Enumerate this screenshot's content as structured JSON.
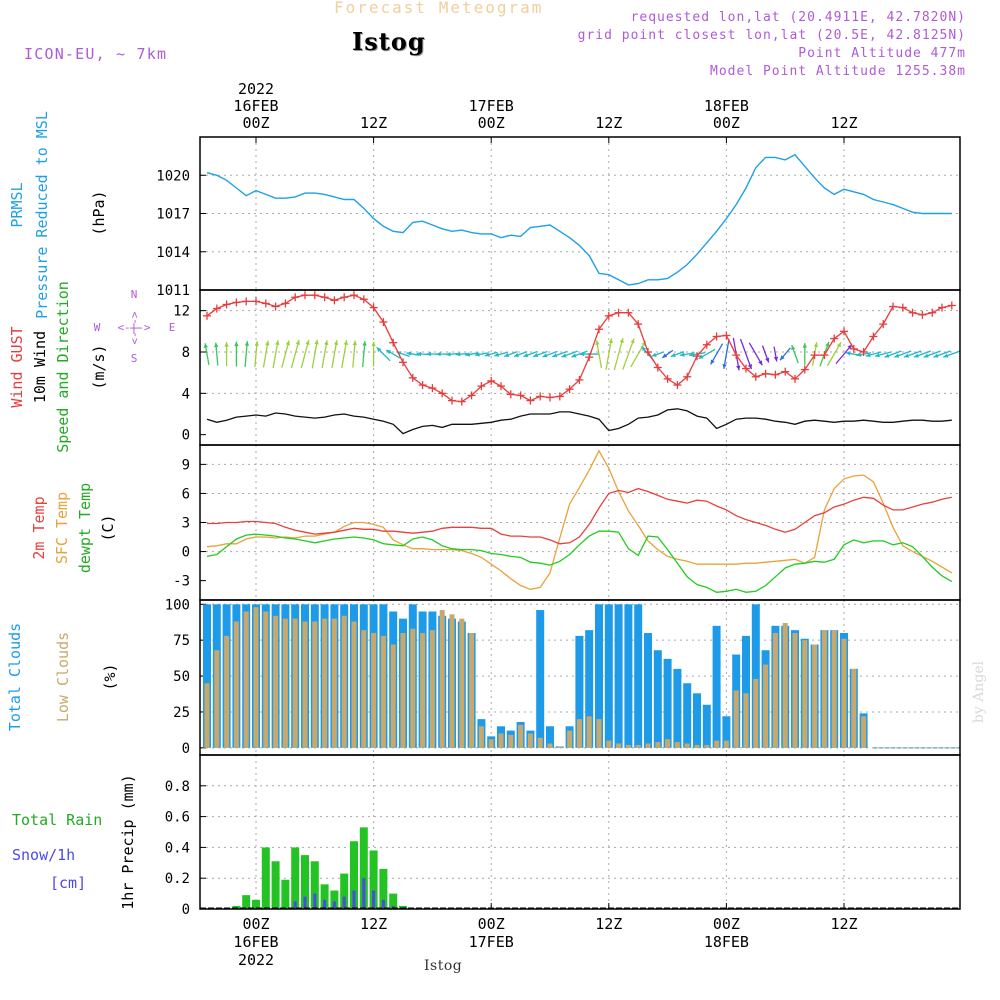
{
  "header": {
    "title": "Forecast Meteogram",
    "station": "Istog",
    "model": "ICON-EU, ~ 7km",
    "requested": "requested lon,lat (20.4911E, 42.7820N)",
    "grid": "grid point closest lon,lat (20.5E, 42.8125N)",
    "point_alt": "Point Altitude 477m",
    "model_alt": "Model Point Altitude 1255.38m",
    "footer_station": "Istog",
    "watermark": "by Angel"
  },
  "colors": {
    "pressure": "#1ea0e6",
    "gust": "#e83c3c",
    "wind": "#111111",
    "t2m": "#e8403c",
    "tsfc": "#e8a23a",
    "dewpt": "#22cc22",
    "total_clouds": "#1e9be8",
    "low_clouds": "#c9a86b",
    "rain": "#22c322",
    "snow": "#4a4ae6",
    "purple": "#b05ad8"
  },
  "time_axis": {
    "top_labels": [
      {
        "hour": 0,
        "lines": [
          "2022",
          "16FEB",
          "00Z"
        ]
      },
      {
        "hour": 12,
        "lines": [
          "12Z"
        ]
      },
      {
        "hour": 24,
        "lines": [
          "17FEB",
          "00Z"
        ]
      },
      {
        "hour": 36,
        "lines": [
          "12Z"
        ]
      },
      {
        "hour": 48,
        "lines": [
          "18FEB",
          "00Z"
        ]
      },
      {
        "hour": 60,
        "lines": [
          "12Z"
        ]
      }
    ],
    "bottom_labels": [
      {
        "hour": 0,
        "lines": [
          "00Z",
          "16FEB",
          "2022"
        ]
      },
      {
        "hour": 12,
        "lines": [
          "12Z"
        ]
      },
      {
        "hour": 24,
        "lines": [
          "00Z",
          "17FEB"
        ]
      },
      {
        "hour": 36,
        "lines": [
          "12Z"
        ]
      },
      {
        "hour": 48,
        "lines": [
          "00Z",
          "18FEB"
        ]
      },
      {
        "hour": 60,
        "lines": [
          "12Z"
        ]
      }
    ]
  },
  "panel_labels": {
    "pressure": [
      "PRMSL",
      "Pressure Reduced to MSL",
      "(hPa)"
    ],
    "wind": [
      "Wind GUST",
      "10m Wind",
      "Speed and Direction",
      "(m/s)"
    ],
    "wind_compass": {
      "w": "W",
      "e": "E",
      "n": "N",
      "s": "S",
      "arrows": "<-|->"
    },
    "temp": [
      "2m Temp",
      "SFC Temp",
      "dewpt Temp",
      "(C)"
    ],
    "clouds": [
      "Total Clouds",
      "Low Clouds",
      "(%)"
    ],
    "precip": [
      "Total  Rain",
      "Snow/1h",
      "[cm]",
      "1hr Precip (mm)"
    ]
  },
  "chart_data": [
    {
      "type": "line",
      "title": "PRMSL Pressure Reduced to MSL",
      "ylabel": "(hPa)",
      "ylim": [
        1011,
        1023
      ],
      "yticks": [
        1011,
        1014,
        1017,
        1020
      ],
      "x_hours": [
        -5,
        -4,
        -3,
        -2,
        -1,
        0,
        1,
        2,
        3,
        4,
        5,
        6,
        7,
        8,
        9,
        10,
        11,
        12,
        13,
        14,
        15,
        16,
        17,
        18,
        19,
        20,
        21,
        22,
        23,
        24,
        25,
        26,
        27,
        28,
        29,
        30,
        31,
        32,
        33,
        34,
        35,
        36,
        37,
        38,
        39,
        40,
        41,
        42,
        43,
        44,
        45,
        46,
        47,
        48,
        49,
        50,
        51,
        52,
        53,
        54,
        55,
        56,
        57,
        58,
        59,
        60,
        61,
        62,
        63,
        64,
        65,
        66,
        67,
        68,
        69,
        70,
        71
      ],
      "pressure": [
        1020.2,
        1020.0,
        1019.6,
        1019.0,
        1018.4,
        1018.8,
        1018.5,
        1018.2,
        1018.2,
        1018.3,
        1018.6,
        1018.6,
        1018.5,
        1018.3,
        1018.1,
        1018.1,
        1017.4,
        1016.6,
        1016.0,
        1015.6,
        1015.5,
        1016.3,
        1016.4,
        1016.1,
        1015.8,
        1015.6,
        1015.7,
        1015.5,
        1015.4,
        1015.4,
        1015.1,
        1015.3,
        1015.2,
        1015.9,
        1016.0,
        1016.1,
        1015.6,
        1015.1,
        1014.5,
        1013.7,
        1012.3,
        1012.2,
        1011.8,
        1011.4,
        1011.5,
        1011.8,
        1011.8,
        1011.9,
        1012.4,
        1013.0,
        1013.8,
        1014.7,
        1015.6,
        1016.6,
        1017.7,
        1019.0,
        1020.6,
        1021.4,
        1021.4,
        1021.2,
        1021.6,
        1020.7,
        1019.8,
        1019.0,
        1018.5,
        1018.9,
        1018.7,
        1018.5,
        1018.1,
        1017.9,
        1017.7,
        1017.4,
        1017.1,
        1017.0,
        1017.0,
        1017.0,
        1017.0
      ]
    },
    {
      "type": "line",
      "title": "Wind GUST / 10m Wind Speed and Direction",
      "ylabel": "(m/s)",
      "ylim": [
        -1,
        14
      ],
      "yticks": [
        0,
        4,
        8,
        12
      ],
      "x_hours": [
        -5,
        -4,
        -3,
        -2,
        -1,
        0,
        1,
        2,
        3,
        4,
        5,
        6,
        7,
        8,
        9,
        10,
        11,
        12,
        13,
        14,
        15,
        16,
        17,
        18,
        19,
        20,
        21,
        22,
        23,
        24,
        25,
        26,
        27,
        28,
        29,
        30,
        31,
        32,
        33,
        34,
        35,
        36,
        37,
        38,
        39,
        40,
        41,
        42,
        43,
        44,
        45,
        46,
        47,
        48,
        49,
        50,
        51,
        52,
        53,
        54,
        55,
        56,
        57,
        58,
        59,
        60,
        61,
        62,
        63,
        64,
        65,
        66,
        67,
        68,
        69,
        70,
        71
      ],
      "gust": [
        11.5,
        12.2,
        12.6,
        12.8,
        12.9,
        12.9,
        12.7,
        12.4,
        12.7,
        13.3,
        13.5,
        13.5,
        13.3,
        13.0,
        13.3,
        13.5,
        13.1,
        12.3,
        10.9,
        8.9,
        7.0,
        5.5,
        4.8,
        4.5,
        4.0,
        3.3,
        3.2,
        3.8,
        4.7,
        5.2,
        4.7,
        3.9,
        3.8,
        3.3,
        3.7,
        3.6,
        3.7,
        4.4,
        5.3,
        7.5,
        10.2,
        11.5,
        11.8,
        11.8,
        10.7,
        8.0,
        6.5,
        5.4,
        4.8,
        5.6,
        7.6,
        8.7,
        9.5,
        9.6,
        7.7,
        6.4,
        5.6,
        5.9,
        5.8,
        6.1,
        5.4,
        6.3,
        7.7,
        7.7,
        9.3,
        10.0,
        8.3,
        8.0,
        9.5,
        10.7,
        12.4,
        12.3,
        11.8,
        11.6,
        11.8,
        12.3,
        12.5
      ],
      "wind": [
        1.5,
        1.2,
        1.4,
        1.7,
        1.8,
        1.9,
        1.8,
        2.1,
        2.0,
        1.8,
        1.7,
        1.6,
        1.7,
        1.9,
        2.0,
        1.8,
        1.7,
        1.5,
        1.3,
        1.0,
        0.1,
        0.5,
        0.8,
        0.9,
        0.7,
        1.0,
        1.0,
        1.0,
        1.1,
        1.2,
        1.4,
        1.5,
        1.8,
        2.0,
        2.0,
        2.0,
        2.2,
        2.2,
        2.0,
        1.8,
        1.5,
        0.4,
        0.6,
        1.0,
        1.6,
        1.7,
        1.9,
        2.4,
        2.5,
        2.3,
        1.8,
        1.6,
        0.6,
        1.0,
        1.5,
        1.6,
        1.6,
        1.5,
        1.3,
        1.2,
        1.0,
        1.3,
        1.4,
        1.3,
        1.2,
        1.3,
        1.3,
        1.4,
        1.3,
        1.2,
        1.2,
        1.3,
        1.4,
        1.4,
        1.3,
        1.3,
        1.4
      ],
      "arrow_dir_deg": [
        170,
        175,
        180,
        180,
        185,
        185,
        190,
        190,
        195,
        195,
        195,
        190,
        190,
        190,
        190,
        185,
        185,
        180,
        135,
        120,
        110,
        100,
        95,
        90,
        90,
        85,
        85,
        80,
        80,
        75,
        75,
        70,
        70,
        70,
        70,
        70,
        70,
        70,
        70,
        90,
        170,
        190,
        195,
        200,
        210,
        140,
        70,
        55,
        70,
        80,
        80,
        60,
        30,
        10,
        350,
        340,
        330,
        340,
        350,
        40,
        160,
        180,
        190,
        200,
        210,
        220,
        100,
        80,
        75,
        75,
        70,
        70,
        70,
        70,
        70,
        70,
        70
      ],
      "arrow_len": [
        2.2,
        2.3,
        2.4,
        2.5,
        2.6,
        2.6,
        2.7,
        2.8,
        2.8,
        2.9,
        2.9,
        2.9,
        2.8,
        2.8,
        2.8,
        2.7,
        2.6,
        2.5,
        1.9,
        1.6,
        1.4,
        1.3,
        1.2,
        1.2,
        1.2,
        1.2,
        1.2,
        1.3,
        1.3,
        1.3,
        1.4,
        1.4,
        1.4,
        1.5,
        1.5,
        1.6,
        1.6,
        1.7,
        1.7,
        1.9,
        2.8,
        3.2,
        3.3,
        3.3,
        3.0,
        2.0,
        1.3,
        1.3,
        1.4,
        1.5,
        1.6,
        1.9,
        2.4,
        3.0,
        3.3,
        3.2,
        2.6,
        1.8,
        1.5,
        1.6,
        1.9,
        2.2,
        2.4,
        2.6,
        2.7,
        2.5,
        1.6,
        1.5,
        1.6,
        1.7,
        1.8,
        1.8,
        1.8,
        1.8,
        1.8,
        1.8,
        1.8
      ]
    },
    {
      "type": "line",
      "title": "2m Temp / SFC Temp / dewpt Temp",
      "ylabel": "(C)",
      "ylim": [
        -5,
        11
      ],
      "yticks": [
        -3,
        0,
        3,
        6,
        9
      ],
      "x_hours": [
        -5,
        -4,
        -3,
        -2,
        -1,
        0,
        1,
        2,
        3,
        4,
        5,
        6,
        7,
        8,
        9,
        10,
        11,
        12,
        13,
        14,
        15,
        16,
        17,
        18,
        19,
        20,
        21,
        22,
        23,
        24,
        25,
        26,
        27,
        28,
        29,
        30,
        31,
        32,
        33,
        34,
        35,
        36,
        37,
        38,
        39,
        40,
        41,
        42,
        43,
        44,
        45,
        46,
        47,
        48,
        49,
        50,
        51,
        52,
        53,
        54,
        55,
        56,
        57,
        58,
        59,
        60,
        61,
        62,
        63,
        64,
        65,
        66,
        67,
        68,
        69,
        70,
        71
      ],
      "t2m": [
        2.9,
        2.9,
        3.0,
        3.0,
        3.1,
        3.1,
        3.0,
        2.9,
        2.5,
        2.2,
        2.0,
        1.8,
        1.9,
        2.0,
        2.2,
        2.4,
        2.3,
        2.3,
        2.1,
        2.1,
        2.0,
        1.9,
        2.0,
        2.1,
        2.4,
        2.5,
        2.5,
        2.5,
        2.4,
        2.4,
        1.8,
        1.6,
        1.6,
        1.5,
        1.5,
        1.2,
        0.8,
        0.9,
        1.5,
        2.8,
        4.5,
        6.0,
        6.3,
        6.1,
        6.5,
        6.2,
        5.8,
        5.4,
        5.2,
        5.0,
        5.3,
        5.2,
        4.7,
        4.3,
        3.7,
        3.3,
        3.0,
        2.7,
        2.3,
        2.0,
        2.3,
        3.0,
        3.7,
        4.0,
        4.6,
        4.9,
        5.3,
        5.6,
        5.5,
        4.8,
        4.3,
        4.3,
        4.6,
        4.9,
        5.1,
        5.4,
        5.6
      ],
      "tsfc": [
        0.5,
        0.6,
        0.8,
        0.8,
        1.3,
        1.5,
        1.5,
        1.4,
        1.5,
        1.4,
        1.6,
        1.6,
        1.8,
        2.0,
        2.6,
        3.0,
        3.0,
        2.8,
        2.5,
        1.2,
        0.7,
        0.3,
        0.3,
        0.2,
        0.2,
        0.2,
        0.1,
        -0.2,
        -0.6,
        -1.3,
        -2.0,
        -2.8,
        -3.5,
        -3.9,
        -3.7,
        -2.2,
        1.4,
        4.9,
        6.6,
        8.4,
        10.4,
        8.6,
        6.2,
        4.2,
        2.7,
        1.1,
        0.2,
        -0.5,
        -0.8,
        -1.0,
        -1.3,
        -1.3,
        -1.3,
        -1.3,
        -1.3,
        -1.2,
        -1.2,
        -1.1,
        -1.0,
        -0.9,
        -0.8,
        -1.2,
        -0.6,
        4.3,
        6.5,
        7.5,
        7.8,
        7.9,
        7.2,
        5.0,
        2.5,
        0.6,
        0.0,
        -0.5,
        -1.0,
        -1.6,
        -2.2
      ],
      "dewpt": [
        -0.5,
        -0.3,
        0.5,
        1.3,
        1.7,
        1.8,
        1.7,
        1.6,
        1.4,
        1.3,
        1.1,
        0.9,
        1.1,
        1.3,
        1.4,
        1.5,
        1.4,
        1.2,
        0.8,
        0.7,
        0.6,
        1.3,
        1.5,
        1.2,
        0.6,
        0.3,
        0.2,
        0.2,
        0.1,
        -0.2,
        -0.3,
        -0.5,
        -0.6,
        -1.1,
        -1.2,
        -1.4,
        -1.0,
        -0.3,
        0.7,
        1.6,
        2.1,
        2.1,
        2.0,
        0.3,
        -0.4,
        1.6,
        1.5,
        0.2,
        -1.2,
        -2.6,
        -3.4,
        -3.7,
        -4.2,
        -4.1,
        -3.9,
        -4.2,
        -4.1,
        -3.5,
        -2.6,
        -1.7,
        -1.3,
        -1.2,
        -1.0,
        -1.1,
        -0.8,
        0.7,
        1.2,
        0.9,
        1.1,
        1.1,
        0.7,
        0.9,
        0.5,
        -0.5,
        -1.6,
        -2.5,
        -3.1
      ]
    },
    {
      "type": "bar",
      "title": "Total Clouds / Low Clouds",
      "ylabel": "(%)",
      "ylim": [
        -5,
        103
      ],
      "yticks": [
        0,
        25,
        50,
        75,
        100
      ],
      "x_hours": [
        -5,
        -4,
        -3,
        -2,
        -1,
        0,
        1,
        2,
        3,
        4,
        5,
        6,
        7,
        8,
        9,
        10,
        11,
        12,
        13,
        14,
        15,
        16,
        17,
        18,
        19,
        20,
        21,
        22,
        23,
        24,
        25,
        26,
        27,
        28,
        29,
        30,
        31,
        32,
        33,
        34,
        35,
        36,
        37,
        38,
        39,
        40,
        41,
        42,
        43,
        44,
        45,
        46,
        47,
        48,
        49,
        50,
        51,
        52,
        53,
        54,
        55,
        56,
        57,
        58,
        59,
        60,
        61,
        62,
        63,
        64,
        65,
        66,
        67,
        68,
        69,
        70,
        71
      ],
      "total_clouds": [
        100,
        100,
        100,
        100,
        100,
        100,
        100,
        100,
        100,
        100,
        100,
        100,
        100,
        100,
        100,
        100,
        100,
        100,
        100,
        95,
        90,
        100,
        95,
        95,
        92,
        90,
        88,
        80,
        20,
        8,
        15,
        12,
        18,
        12,
        96,
        15,
        1,
        15,
        78,
        82,
        100,
        100,
        100,
        100,
        100,
        80,
        68,
        62,
        55,
        45,
        38,
        30,
        85,
        22,
        65,
        78,
        100,
        68,
        85,
        85,
        82,
        76,
        72,
        82,
        82,
        80,
        55,
        24,
        0,
        0,
        0,
        0,
        0,
        0,
        0,
        0,
        0
      ],
      "low_clouds": [
        45,
        68,
        78,
        88,
        95,
        98,
        95,
        92,
        90,
        90,
        88,
        88,
        90,
        90,
        92,
        88,
        82,
        80,
        78,
        72,
        80,
        83,
        80,
        82,
        96,
        93,
        90,
        80,
        15,
        6,
        10,
        9,
        16,
        10,
        7,
        3,
        1,
        12,
        20,
        22,
        20,
        5,
        3,
        2,
        2,
        3,
        4,
        6,
        4,
        3,
        2,
        2,
        5,
        5,
        40,
        38,
        48,
        58,
        80,
        87,
        80,
        75,
        72,
        82,
        82,
        76,
        55,
        22,
        0,
        0,
        0,
        0,
        0,
        0,
        0,
        0,
        0
      ]
    },
    {
      "type": "bar",
      "title": "Total Rain / Snow/1h",
      "ylabel": "1hr Precip (mm)",
      "ylim": [
        0,
        1.0
      ],
      "yticks": [
        0,
        0.2,
        0.4,
        0.6,
        0.8
      ],
      "ytick_labels": [
        "0",
        "0.2",
        "0.4",
        "0.6",
        "0.8"
      ],
      "x_hours": [
        -2,
        -1,
        0,
        1,
        2,
        3,
        4,
        5,
        6,
        7,
        8,
        9,
        10,
        11,
        12,
        13,
        14,
        15
      ],
      "rain": [
        0.02,
        0.09,
        0.06,
        0.4,
        0.31,
        0.19,
        0.4,
        0.35,
        0.31,
        0.16,
        0.12,
        0.23,
        0.44,
        0.53,
        0.38,
        0.26,
        0.1,
        0.02
      ],
      "snow": [
        0,
        0,
        0,
        0,
        0,
        0,
        0.05,
        0.08,
        0.1,
        0.06,
        0.05,
        0.08,
        0.12,
        0.2,
        0.12,
        0.06,
        0.02,
        0
      ]
    }
  ]
}
